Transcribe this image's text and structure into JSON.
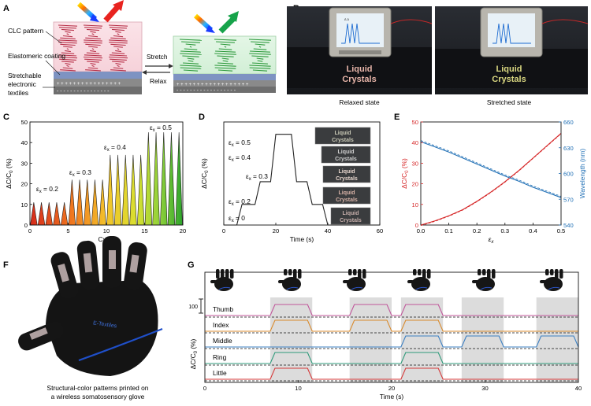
{
  "panels": {
    "A": {
      "letter": "A",
      "labels": {
        "clc": "CLC  pattern",
        "coating": "Elastomeric coating",
        "textile1": "Stretchable",
        "textile2": "electronic",
        "textile3": "textiles",
        "stretch": "Stretch",
        "relax": "Relax"
      },
      "colors": {
        "relaxed_helix": "#b8324a",
        "stretched_helix": "#2e9a3d",
        "reflect_red": "#e8231f",
        "reflect_green": "#16a34a",
        "coating": "#7e93c2"
      }
    },
    "B": {
      "letter": "B",
      "photo_text": "Liquid Crystals",
      "captions": [
        "Relaxed state",
        "Stretched state"
      ]
    },
    "C": {
      "letter": "C",
      "annotations": [
        "εx = 0.2",
        "εx = 0.3",
        "εx = 0.4",
        "εx = 0.5"
      ]
    },
    "D": {
      "letter": "D",
      "annotations": [
        "εx = 0.5",
        "εx = 0.4",
        "εx = 0.3",
        "εx = 0.2",
        "εx = 0"
      ],
      "inset_text": "Liquid Crystals"
    },
    "E": {
      "letter": "E"
    },
    "F": {
      "letter": "F",
      "glove_label": "E-Textiles",
      "caption1": "Structural-color patterns printed on",
      "caption2": "a wireless somatosensory glove"
    },
    "G": {
      "letter": "G",
      "fingers": [
        "Thumb",
        "Index",
        "Middle",
        "Ring",
        "Little"
      ],
      "scale_label": "100"
    }
  },
  "chart_data": [
    {
      "panel": "C",
      "type": "area",
      "xlabel": "Cycle",
      "ylabel": "ΔC/C0 (%)",
      "xlim": [
        0,
        20
      ],
      "ylim": [
        0,
        50
      ],
      "xticks": [
        0,
        5,
        10,
        15,
        20
      ],
      "yticks": [
        0,
        10,
        20,
        30,
        40,
        50
      ],
      "series": [
        {
          "strain": 0.2,
          "peaks_at": [
            1,
            2,
            3,
            4,
            5
          ],
          "peak": 11
        },
        {
          "strain": 0.3,
          "peaks_at": [
            6,
            7,
            8,
            9,
            10
          ],
          "peak": 22
        },
        {
          "strain": 0.4,
          "peaks_at": [
            11,
            12,
            13,
            14,
            15
          ],
          "peak": 34
        },
        {
          "strain": 0.5,
          "peaks_at": [
            16,
            17,
            18,
            19,
            20
          ],
          "peak": 45
        }
      ]
    },
    {
      "panel": "D",
      "type": "line",
      "xlabel": "Time (s)",
      "ylabel": "ΔC/C0 (%)",
      "xlim": [
        0,
        60
      ],
      "ylim": [
        0,
        50
      ],
      "xticks": [
        0,
        20,
        40,
        60
      ],
      "x": [
        0,
        5,
        7,
        12,
        14,
        18,
        20,
        26,
        28,
        32,
        34,
        38,
        40,
        60
      ],
      "y": [
        0,
        0,
        10,
        10,
        21,
        21,
        44,
        44,
        21,
        21,
        10,
        10,
        0,
        0
      ]
    },
    {
      "panel": "E",
      "type": "line",
      "xlabel": "εx",
      "ylabel": "ΔC/C0 (%)",
      "ylabel_right": "Wavelength (nm)",
      "xlim": [
        0,
        0.5
      ],
      "ylim": [
        0,
        50
      ],
      "ylim_right": [
        540,
        660
      ],
      "xticks": [
        0.0,
        0.1,
        0.2,
        0.3,
        0.4,
        0.5
      ],
      "yticks": [
        0,
        10,
        20,
        30,
        40,
        50
      ],
      "yticks_right": [
        540,
        570,
        600,
        630,
        660
      ],
      "series": [
        {
          "axis": "left",
          "color": "#d62728",
          "x": [
            0,
            0.05,
            0.1,
            0.15,
            0.2,
            0.25,
            0.3,
            0.35,
            0.4,
            0.45,
            0.5
          ],
          "y": [
            0,
            2,
            4.5,
            7.5,
            11.5,
            16,
            21,
            26.5,
            32.5,
            38.5,
            44.5
          ]
        },
        {
          "axis": "right",
          "color": "#1f6fb5",
          "x": [
            0,
            0.05,
            0.1,
            0.15,
            0.2,
            0.25,
            0.3,
            0.35,
            0.4,
            0.45,
            0.5
          ],
          "y": [
            637,
            631,
            625,
            618,
            611,
            604,
            597,
            591,
            584,
            578,
            572
          ]
        }
      ]
    },
    {
      "panel": "G",
      "type": "line",
      "xlabel": "Time (s)",
      "ylabel": "ΔC/C0 (%)",
      "xlim": [
        0,
        40
      ],
      "xticks": [
        0,
        10,
        20,
        30,
        40
      ],
      "shaded_windows": [
        [
          7,
          11.5
        ],
        [
          15.5,
          20
        ],
        [
          21,
          25.5
        ],
        [
          27.5,
          32
        ],
        [
          35.5,
          40
        ]
      ],
      "series": [
        {
          "name": "Thumb",
          "color": "#c0569a",
          "active": [
            [
              7,
              11.5
            ],
            [
              15.5,
              20
            ],
            [
              21,
              25.5
            ]
          ]
        },
        {
          "name": "Index",
          "color": "#d98a2c",
          "active": [
            [
              7,
              11.5
            ],
            [
              15.5,
              20
            ],
            [
              21,
              25.5
            ]
          ]
        },
        {
          "name": "Middle",
          "color": "#3b7fc2",
          "active": [
            [
              21,
              25.5
            ],
            [
              27.5,
              32
            ],
            [
              35.5,
              40
            ]
          ]
        },
        {
          "name": "Ring",
          "color": "#2e9a7a",
          "active": [
            [
              7,
              11.5
            ],
            [
              21,
              25.5
            ]
          ]
        },
        {
          "name": "Little",
          "color": "#d63a3a",
          "active": [
            [
              7,
              11.5
            ],
            [
              21,
              25.5
            ]
          ]
        }
      ]
    }
  ]
}
